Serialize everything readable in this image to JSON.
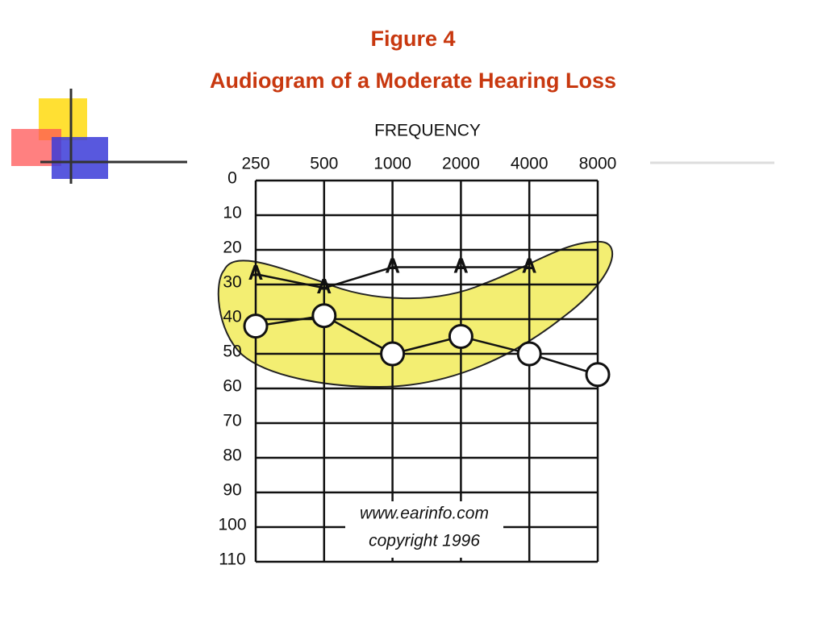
{
  "chart_data": {
    "type": "line",
    "title": "Figure 4",
    "subtitle": "Audiogram of a Moderate Hearing Loss",
    "x_label": "FREQUENCY",
    "categories": [
      "250",
      "500",
      "1000",
      "2000",
      "4000",
      "8000"
    ],
    "series": [
      {
        "marker": "A",
        "color": "#111111",
        "values": [
          27,
          31,
          25,
          25,
          25,
          null
        ]
      },
      {
        "marker": "circle",
        "color": "#111111",
        "values": [
          42,
          39,
          50,
          45,
          50,
          56
        ]
      }
    ],
    "ylim": [
      0,
      110
    ],
    "yticks": [
      0,
      10,
      20,
      30,
      40,
      50,
      60,
      70,
      80,
      90,
      100,
      110
    ],
    "y_inverted": true,
    "grid": true,
    "annotations": [
      "www.earinfo.com",
      "copyright 1996"
    ]
  }
}
